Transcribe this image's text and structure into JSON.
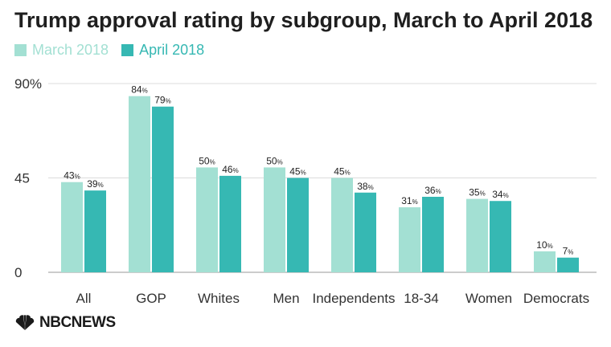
{
  "title": "Trump approval rating by subgroup, March to April 2018",
  "source_logo": "NBCNEWS",
  "chart_data": {
    "type": "bar",
    "categories": [
      "All",
      "GOP",
      "Whites",
      "Men",
      "Independents",
      "18-34",
      "Women",
      "Democrats"
    ],
    "series": [
      {
        "name": "March 2018",
        "color": "#a3e0d3",
        "values": [
          43,
          84,
          50,
          50,
          45,
          31,
          35,
          10
        ]
      },
      {
        "name": "April 2018",
        "color": "#36b8b3",
        "values": [
          39,
          79,
          46,
          45,
          38,
          36,
          34,
          7
        ]
      }
    ],
    "yticks": [
      "0",
      "45",
      "90%"
    ],
    "ylim": [
      0,
      90
    ],
    "value_suffix": "%",
    "grid": true,
    "legend_position": "top-left"
  }
}
